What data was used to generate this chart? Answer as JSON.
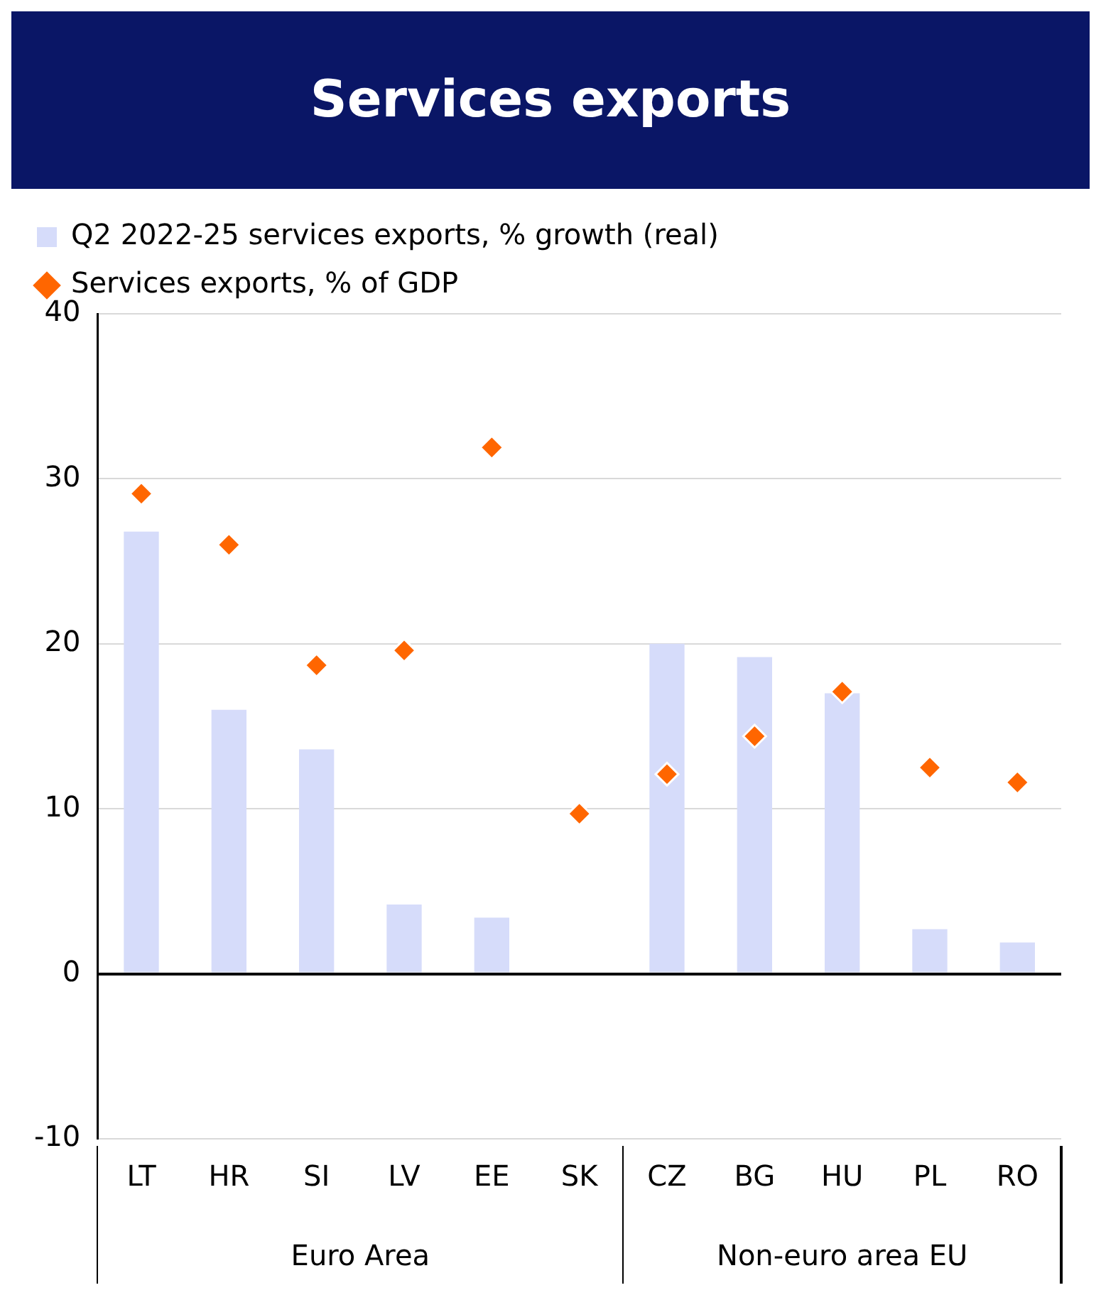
{
  "chart_data": {
    "type": "bar",
    "title": "Services exports",
    "categories": [
      "LT",
      "HR",
      "SI",
      "LV",
      "EE",
      "SK",
      "CZ",
      "BG",
      "HU",
      "PL",
      "RO"
    ],
    "series": [
      {
        "name": "Q2 2022-25 services exports, % growth (real)",
        "color": "#d6dcfa",
        "values": [
          26.8,
          16.0,
          13.6,
          4.2,
          3.4,
          null,
          20.0,
          19.2,
          17.0,
          2.7,
          1.9
        ]
      },
      {
        "name": "Services exports, % of GDP",
        "type": "scatter",
        "color": "#ff6600",
        "values": [
          29.1,
          26.0,
          18.7,
          19.6,
          31.9,
          9.7,
          12.1,
          14.4,
          17.1,
          12.5,
          11.6
        ]
      }
    ],
    "ylim": [
      -10,
      40
    ],
    "yticks": [
      -10,
      0,
      10,
      20,
      30,
      40
    ],
    "grid": "y",
    "legend": "top",
    "marker": "diamond",
    "annotations": [
      "Euro Area",
      "Non-euro area EU"
    ]
  }
}
